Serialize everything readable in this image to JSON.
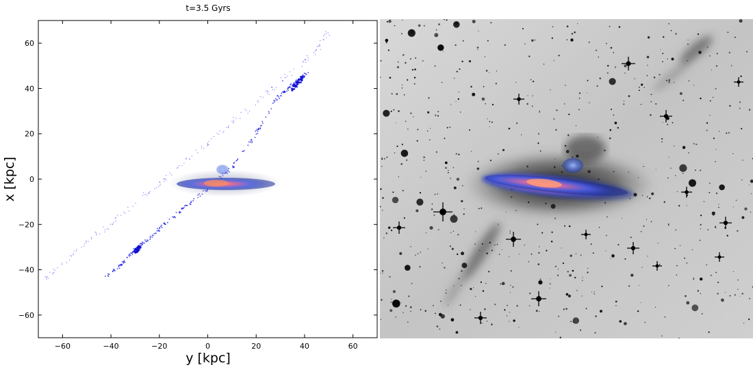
{
  "figure": {
    "title": "t=3.5 Gyrs",
    "left_panel": "N-body simulation of tidal stream (x vs y)",
    "right_panel": "Deep inverted-gray sky image with colour galaxy inset"
  },
  "chart_data": {
    "type": "scatter",
    "title": "t=3.5 Gyrs",
    "xlabel": "y [kpc]",
    "ylabel": "x [kpc]",
    "xlim": [
      -70,
      70
    ],
    "ylim": [
      -70,
      70
    ],
    "xticks": [
      "−60",
      "−40",
      "−20",
      "0",
      "20",
      "40",
      "60"
    ],
    "yticks": [
      "60",
      "40",
      "20",
      "0",
      "−20",
      "−40",
      "−60"
    ],
    "series": [
      {
        "role": "outer tidal stream (sparse)",
        "color": "#2b2bff",
        "x": [
          -68,
          -60,
          -50,
          -40,
          -30,
          -20,
          -10,
          0,
          10,
          20,
          30,
          40,
          46,
          50
        ],
        "y": [
          -45,
          -37,
          -28,
          -20,
          -11,
          -2,
          7,
          16,
          25,
          34,
          43,
          52,
          58,
          66
        ]
      },
      {
        "role": "inner tidal stream (dense)",
        "color": "#1010e8",
        "x": [
          -42,
          -35,
          -30,
          -25,
          -18,
          -10,
          0,
          10,
          20,
          28,
          33,
          38,
          41
        ],
        "y": [
          -43,
          -37,
          -31,
          -27,
          -20,
          -13,
          -4,
          5,
          20,
          35,
          40,
          44,
          47
        ]
      }
    ],
    "grid": false
  },
  "colors": {
    "stream": "#2222ff",
    "stream_dense": "#0a0ad0",
    "disk_core": "#e86a6a",
    "disk_outer": "#5a6ad8",
    "sky_bg": "#c8c8c8"
  }
}
